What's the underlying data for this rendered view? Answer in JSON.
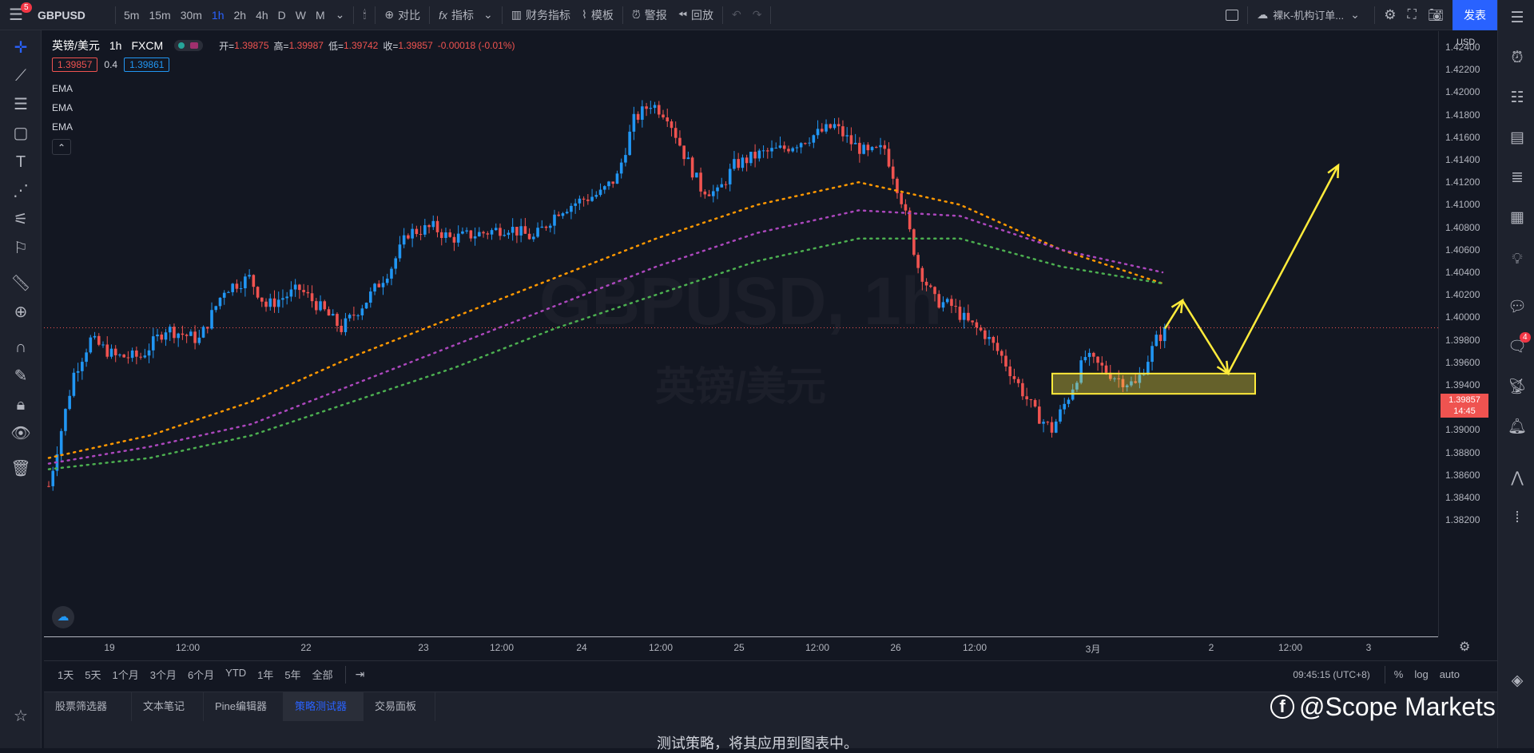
{
  "toolbar": {
    "menu_badge": "5",
    "symbol": "GBPUSD",
    "intervals": [
      "5m",
      "15m",
      "30m",
      "1h",
      "2h",
      "4h",
      "D",
      "W",
      "M"
    ],
    "active_interval": "1h",
    "compare_label": "对比",
    "indicators_label": "指标",
    "financials_label": "财务指标",
    "templates_label": "模板",
    "alert_label": "警报",
    "replay_label": "回放",
    "layout_name": "裸K-机构订单...",
    "publish_label": "发表"
  },
  "legend": {
    "name": "英镑/美元",
    "interval": "1h",
    "exchange": "FXCM",
    "open_label": "开=",
    "open": "1.39875",
    "high_label": "高=",
    "high": "1.39987",
    "low_label": "低=",
    "low": "1.39742",
    "close_label": "收=",
    "close": "1.39857",
    "change": "-0.00018 (-0.01%)",
    "bid": "1.39857",
    "spread": "0.4",
    "ask": "1.39861",
    "indicators": [
      "EMA",
      "EMA",
      "EMA"
    ]
  },
  "watermark": {
    "symbol": "GBPUSD, 1h",
    "name": "英镑/美元"
  },
  "price_axis": {
    "currency": "USD",
    "ticks": [
      "1.42400",
      "1.42200",
      "1.42000",
      "1.41800",
      "1.41600",
      "1.41400",
      "1.41200",
      "1.41000",
      "1.40800",
      "1.40600",
      "1.40400",
      "1.40200",
      "1.40000",
      "1.39800",
      "1.39600",
      "1.39400",
      "1.39200",
      "1.39000",
      "1.38800",
      "1.38600",
      "1.38400",
      "1.38200"
    ],
    "current_price": "1.39857",
    "countdown": "14:45"
  },
  "time_axis": {
    "ticks": [
      "19",
      "12:00",
      "22",
      "23",
      "12:00",
      "24",
      "12:00",
      "25",
      "12:00",
      "26",
      "12:00",
      "3月",
      "2",
      "12:00",
      "3"
    ]
  },
  "range_bar": {
    "ranges": [
      "1天",
      "5天",
      "1个月",
      "3个月",
      "6个月",
      "YTD",
      "1年",
      "5年",
      "全部"
    ],
    "clock": "09:45:15 (UTC+8)",
    "percent": "%",
    "log": "log",
    "auto": "auto"
  },
  "bottom_panel": {
    "tabs": [
      "股票筛选器",
      "文本笔记",
      "Pine编辑器",
      "策略测试器",
      "交易面板"
    ],
    "active_tab": "策略测试器",
    "message": "测试策略，将其应用到图表中。"
  },
  "brand": {
    "text": "@Scope Markets"
  },
  "right_badge": "4",
  "colors": {
    "up": "#2196f3",
    "down": "#ef5350",
    "ema_fast": "#ff9800",
    "ema_mid": "#ab47bc",
    "ema_slow": "#4caf50",
    "annotation": "#ffeb3b",
    "accent": "#2962ff"
  },
  "chart_data": {
    "type": "candlestick",
    "symbol": "GBPUSD",
    "interval": "1h",
    "ylim": [
      1.381,
      1.4255
    ],
    "x_tick_labels": [
      "19",
      "12:00",
      "22",
      "23",
      "12:00",
      "24",
      "12:00",
      "25",
      "12:00",
      "26",
      "12:00",
      "3月",
      "2",
      "12:00",
      "3"
    ],
    "last_close": 1.39857,
    "series": [
      {
        "name": "EMA",
        "values": [
          1.387,
          1.389,
          1.392,
          1.396,
          1.3995,
          1.403,
          1.4065,
          1.4095,
          1.4115,
          1.4095,
          1.4055,
          1.4025
        ]
      },
      {
        "name": "EMA",
        "values": [
          1.3865,
          1.388,
          1.39,
          1.3935,
          1.397,
          1.4005,
          1.404,
          1.407,
          1.409,
          1.4085,
          1.4055,
          1.4035
        ]
      },
      {
        "name": "EMA",
        "values": [
          1.386,
          1.387,
          1.389,
          1.392,
          1.395,
          1.3985,
          1.4015,
          1.4045,
          1.4065,
          1.4065,
          1.404,
          1.4025
        ]
      }
    ],
    "annotations": {
      "demand_zone": [
        1.3927,
        1.3945
      ],
      "arrow_path": [
        1.3985,
        1.401,
        1.3945,
        1.413
      ]
    }
  }
}
